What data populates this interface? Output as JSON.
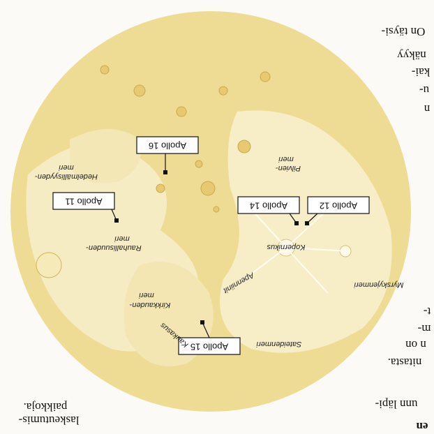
{
  "apollo_sites": [
    {
      "label": "Apollo 16"
    },
    {
      "label": "Apollo 11"
    },
    {
      "label": "Apollo 14"
    },
    {
      "label": "Apollo 12"
    },
    {
      "label": "Apollo 15"
    }
  ],
  "regions": [
    {
      "lines": [
        "Hedelmällisyyden-",
        "meri"
      ]
    },
    {
      "lines": [
        "Pilvien-",
        "meri"
      ]
    },
    {
      "lines": [
        "Rauhallisuuden-",
        "meri"
      ]
    },
    {
      "lines": [
        "Kopernikus"
      ]
    },
    {
      "lines": [
        "Apenniinit"
      ]
    },
    {
      "lines": [
        "Myrskyjenmeri"
      ]
    },
    {
      "lines": [
        "Kirkkauden-",
        "meri"
      ]
    },
    {
      "lines": [
        "Kaukasus"
      ]
    },
    {
      "lines": [
        "Sateidenmeri"
      ]
    }
  ],
  "margin_text": {
    "left": [
      "laskeutumis-",
      "paikkoja."
    ],
    "right": [
      "On täysi-",
      "näkyy",
      "kai-",
      "u-",
      "n",
      "t-",
      "m-",
      "n on",
      "nitasta.",
      "unn läpi-",
      "en"
    ]
  }
}
